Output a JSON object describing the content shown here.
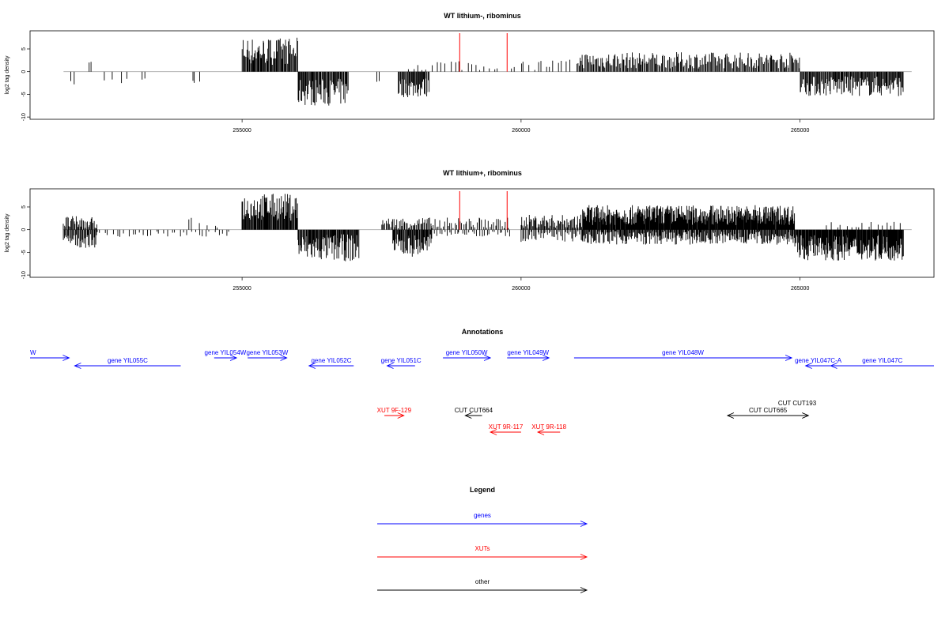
{
  "chart_data": [
    {
      "type": "bar",
      "title": "WT lithium-, ribominus",
      "xlabel": "",
      "ylabel": "log2 tag density",
      "xlim": [
        251200,
        267400
      ],
      "ylim": [
        -10.5,
        9
      ],
      "x_ticks": [
        255000,
        260000,
        265000
      ],
      "y_ticks": [
        -10,
        -5,
        0,
        5
      ],
      "x_tick_labels": [
        "255000",
        "260000",
        "265000"
      ],
      "y_tick_labels": [
        "-10",
        "-5",
        "0",
        "5"
      ],
      "baseline": {
        "from": 251800,
        "to": 267000
      },
      "markers": [
        258900,
        259750
      ],
      "segments": [
        {
          "start": 251950,
          "end": 252000,
          "mean": -2.5,
          "spread": 0.5,
          "step": 50
        },
        {
          "start": 252250,
          "end": 252300,
          "mean": 2,
          "spread": 0.3,
          "step": 50
        },
        {
          "start": 252500,
          "end": 253000,
          "mean": -2,
          "spread": 1,
          "step": 150
        },
        {
          "start": 253200,
          "end": 253250,
          "mean": -1.5,
          "spread": 0.3,
          "step": 50
        },
        {
          "start": 254100,
          "end": 254250,
          "mean": -2.5,
          "spread": 0.8,
          "step": 60
        },
        {
          "start": 255000,
          "end": 256000,
          "mean": 4.5,
          "spread": 3,
          "step": 14
        },
        {
          "start": 256000,
          "end": 256900,
          "mean": -4.5,
          "spread": 3,
          "step": 14
        },
        {
          "start": 257400,
          "end": 257450,
          "mean": -2,
          "spread": 0.5,
          "step": 50
        },
        {
          "start": 257800,
          "end": 258350,
          "mean": -3.5,
          "spread": 2.2,
          "step": 14
        },
        {
          "start": 258000,
          "end": 259600,
          "mean": 1.5,
          "spread": 1.3,
          "step": 80
        },
        {
          "start": 259800,
          "end": 260300,
          "mean": 1.2,
          "spread": 1,
          "step": 90
        },
        {
          "start": 260300,
          "end": 260900,
          "mean": 1.5,
          "spread": 1.2,
          "step": 70
        },
        {
          "start": 261000,
          "end": 265000,
          "mean": 2.5,
          "spread": 1.8,
          "step": 18
        },
        {
          "start": 265000,
          "end": 266850,
          "mean": -3.2,
          "spread": 2.2,
          "step": 14
        }
      ]
    },
    {
      "type": "bar",
      "title": "WT lithium+, ribominus",
      "xlabel": "",
      "ylabel": "log2 tag density",
      "xlim": [
        251200,
        267400
      ],
      "ylim": [
        -10.5,
        9
      ],
      "x_ticks": [
        255000,
        260000,
        265000
      ],
      "y_ticks": [
        -10,
        -5,
        0,
        5
      ],
      "x_tick_labels": [
        "255000",
        "260000",
        "265000"
      ],
      "y_tick_labels": [
        "-10",
        "-5",
        "0",
        "5"
      ],
      "baseline": {
        "from": 251800,
        "to": 267000
      },
      "markers": [
        258900,
        259750
      ],
      "segments": [
        {
          "start": 251800,
          "end": 252400,
          "mean": 1.5,
          "spread": 1.5,
          "step": 16
        },
        {
          "start": 251800,
          "end": 252400,
          "mean": -2.5,
          "spread": 1.5,
          "step": 16
        },
        {
          "start": 252400,
          "end": 254800,
          "mean": -1,
          "spread": 0.6,
          "step": 70
        },
        {
          "start": 254000,
          "end": 254700,
          "mean": 1.5,
          "spread": 1.2,
          "step": 120
        },
        {
          "start": 255000,
          "end": 256000,
          "mean": 5,
          "spread": 3,
          "step": 12
        },
        {
          "start": 256000,
          "end": 257100,
          "mean": -4,
          "spread": 3,
          "step": 12
        },
        {
          "start": 257500,
          "end": 258400,
          "mean": 1.5,
          "spread": 1.2,
          "step": 20
        },
        {
          "start": 257700,
          "end": 258400,
          "mean": -3.5,
          "spread": 2.5,
          "step": 12
        },
        {
          "start": 258400,
          "end": 259800,
          "mean": 1.5,
          "spread": 1.2,
          "step": 30
        },
        {
          "start": 258400,
          "end": 259800,
          "mean": -1,
          "spread": 0.6,
          "step": 45
        },
        {
          "start": 260000,
          "end": 261100,
          "mean": 1.8,
          "spread": 1.5,
          "step": 16
        },
        {
          "start": 260000,
          "end": 261100,
          "mean": -1.5,
          "spread": 1.2,
          "step": 25
        },
        {
          "start": 261100,
          "end": 264900,
          "mean": 3.2,
          "spread": 2.2,
          "step": 9
        },
        {
          "start": 261100,
          "end": 264900,
          "mean": -1.8,
          "spread": 1.5,
          "step": 14
        },
        {
          "start": 264900,
          "end": 266850,
          "mean": -4,
          "spread": 2.8,
          "step": 10
        },
        {
          "start": 265500,
          "end": 266850,
          "mean": 1,
          "spread": 0.8,
          "step": 80
        }
      ]
    },
    {
      "type": "diagram",
      "title": "Annotations",
      "xlim": [
        251200,
        267400
      ],
      "features": [
        {
          "label": "W",
          "kind": "gene",
          "start": 250800,
          "end": 251900,
          "strand": "+",
          "row": 0
        },
        {
          "label": "gene YIL055C",
          "kind": "gene",
          "start": 252000,
          "end": 253900,
          "strand": "-",
          "row": 1
        },
        {
          "label": "gene YIL054W",
          "kind": "gene",
          "start": 254500,
          "end": 254900,
          "strand": "+",
          "row": 0
        },
        {
          "label": "gene YIL053W",
          "kind": "gene",
          "start": 255100,
          "end": 255800,
          "strand": "+",
          "row": 0
        },
        {
          "label": "gene YIL052C",
          "kind": "gene",
          "start": 256200,
          "end": 257000,
          "strand": "-",
          "row": 1
        },
        {
          "label": "gene YIL051C",
          "kind": "gene",
          "start": 257600,
          "end": 258100,
          "strand": "-",
          "row": 1
        },
        {
          "label": "gene YIL050W",
          "kind": "gene",
          "start": 258600,
          "end": 259450,
          "strand": "+",
          "row": 0
        },
        {
          "label": "gene YIL049W",
          "kind": "gene",
          "start": 259750,
          "end": 260500,
          "strand": "+",
          "row": 0
        },
        {
          "label": "gene YIL048W",
          "kind": "gene",
          "start": 260950,
          "end": 264850,
          "strand": "+",
          "row": 0
        },
        {
          "label": "gene YIL047C-A",
          "kind": "gene",
          "start": 265100,
          "end": 265550,
          "strand": "-",
          "row": 1
        },
        {
          "label": "gene YIL047C",
          "kind": "gene",
          "start": 265550,
          "end": 267400,
          "strand": "-",
          "row": 1
        },
        {
          "label": "CUT CUT664",
          "kind": "other",
          "start": 259000,
          "end": 259300,
          "strand": "-",
          "row": 2
        },
        {
          "label": "CUT CUT193",
          "kind": "other",
          "start": 265050,
          "end": 265150,
          "strand": "+",
          "row": 2
        },
        {
          "label": "CUT CUT665",
          "kind": "other",
          "start": 263700,
          "end": 265150,
          "strand": "-",
          "row": 3
        },
        {
          "label": "XUT 9F-129",
          "kind": "xut",
          "start": 257550,
          "end": 257900,
          "strand": "+",
          "row": 3
        },
        {
          "label": "XUT 9R-117",
          "kind": "xut",
          "start": 259450,
          "end": 260000,
          "strand": "-",
          "row": 4
        },
        {
          "label": "XUT 9R-118",
          "kind": "xut",
          "start": 260300,
          "end": 260700,
          "strand": "-",
          "row": 4
        }
      ]
    },
    {
      "type": "legend",
      "title": "Legend",
      "entries": [
        {
          "label": "genes",
          "color": "#0000ff"
        },
        {
          "label": "XUTs",
          "color": "#ff0000"
        },
        {
          "label": "other",
          "color": "#000000"
        }
      ]
    }
  ],
  "colors": {
    "gene": "#0000ff",
    "xut": "#ff0000",
    "other": "#000000",
    "marker": "#ff0000",
    "baseline": "#aaaaaa"
  }
}
